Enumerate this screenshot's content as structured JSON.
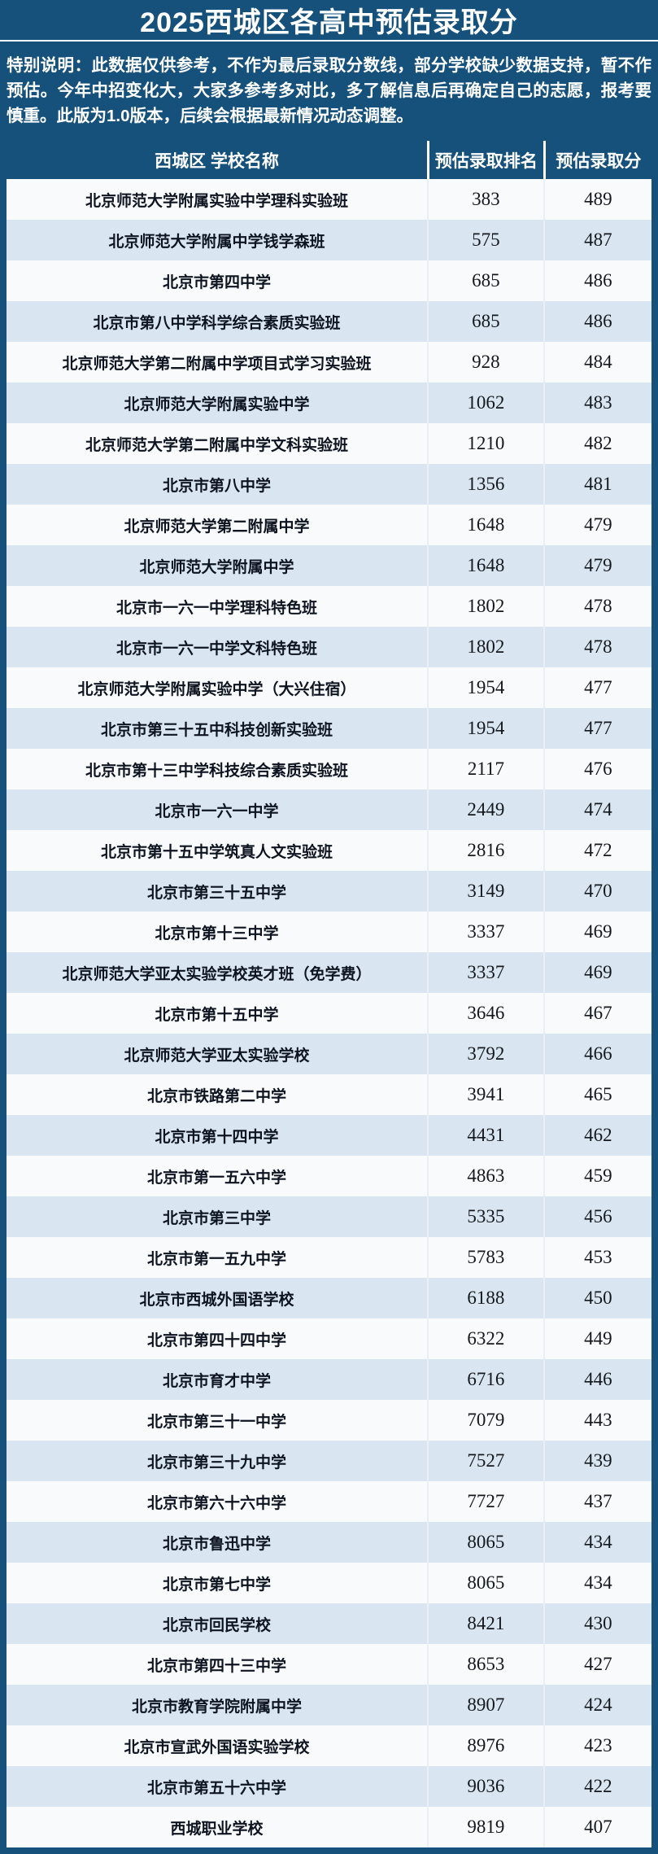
{
  "poster": {
    "title": "2025西城区各高中预估录取分",
    "notice": "特别说明：此数据仅供参考，不作为最后录取分数线，部分学校缺少数据支持，暂不作预估。今年中招变化大，大家多参考多对比，多了解信息后再确定自己的志愿，报考要慎重。此版为1.0版本，后续会根据最新情况动态调整。"
  },
  "colors": {
    "background": "#16517C",
    "header_text": "#FFFFFF",
    "row_white": "#F8FAFC",
    "row_blue": "#D9E6F1",
    "body_text": "#0D1420",
    "divider": "#FFFFFF"
  },
  "chart_data": {
    "type": "table",
    "title": "2025西城区各高中预估录取分",
    "columns": [
      "西城区 学校名称",
      "预估录取排名",
      "预估录取分"
    ],
    "rows": [
      {
        "school": "北京师范大学附属实验中学理科实验班",
        "rank": "383",
        "score": "489"
      },
      {
        "school": "北京师范大学附属中学钱学森班",
        "rank": "575",
        "score": "487"
      },
      {
        "school": "北京市第四中学",
        "rank": "685",
        "score": "486"
      },
      {
        "school": "北京市第八中学科学综合素质实验班",
        "rank": "685",
        "score": "486"
      },
      {
        "school": "北京师范大学第二附属中学项目式学习实验班",
        "rank": "928",
        "score": "484"
      },
      {
        "school": "北京师范大学附属实验中学",
        "rank": "1062",
        "score": "483"
      },
      {
        "school": "北京师范大学第二附属中学文科实验班",
        "rank": "1210",
        "score": "482"
      },
      {
        "school": "北京市第八中学",
        "rank": "1356",
        "score": "481"
      },
      {
        "school": "北京师范大学第二附属中学",
        "rank": "1648",
        "score": "479"
      },
      {
        "school": "北京师范大学附属中学",
        "rank": "1648",
        "score": "479"
      },
      {
        "school": "北京市一六一中学理科特色班",
        "rank": "1802",
        "score": "478"
      },
      {
        "school": "北京市一六一中学文科特色班",
        "rank": "1802",
        "score": "478"
      },
      {
        "school": "北京师范大学附属实验中学（大兴住宿）",
        "rank": "1954",
        "score": "477"
      },
      {
        "school": "北京市第三十五中科技创新实验班",
        "rank": "1954",
        "score": "477"
      },
      {
        "school": "北京市第十三中学科技综合素质实验班",
        "rank": "2117",
        "score": "476"
      },
      {
        "school": "北京市一六一中学",
        "rank": "2449",
        "score": "474"
      },
      {
        "school": "北京市第十五中学筑真人文实验班",
        "rank": "2816",
        "score": "472"
      },
      {
        "school": "北京市第三十五中学",
        "rank": "3149",
        "score": "470"
      },
      {
        "school": "北京市第十三中学",
        "rank": "3337",
        "score": "469"
      },
      {
        "school": "北京师范大学亚太实验学校英才班（免学费）",
        "rank": "3337",
        "score": "469"
      },
      {
        "school": "北京市第十五中学",
        "rank": "3646",
        "score": "467"
      },
      {
        "school": "北京师范大学亚太实验学校",
        "rank": "3792",
        "score": "466"
      },
      {
        "school": "北京市铁路第二中学",
        "rank": "3941",
        "score": "465"
      },
      {
        "school": "北京市第十四中学",
        "rank": "4431",
        "score": "462"
      },
      {
        "school": "北京市第一五六中学",
        "rank": "4863",
        "score": "459"
      },
      {
        "school": "北京市第三中学",
        "rank": "5335",
        "score": "456"
      },
      {
        "school": "北京市第一五九中学",
        "rank": "5783",
        "score": "453"
      },
      {
        "school": "北京市西城外国语学校",
        "rank": "6188",
        "score": "450"
      },
      {
        "school": "北京市第四十四中学",
        "rank": "6322",
        "score": "449"
      },
      {
        "school": "北京市育才中学",
        "rank": "6716",
        "score": "446"
      },
      {
        "school": "北京市第三十一中学",
        "rank": "7079",
        "score": "443"
      },
      {
        "school": "北京市第三十九中学",
        "rank": "7527",
        "score": "439"
      },
      {
        "school": "北京市第六十六中学",
        "rank": "7727",
        "score": "437"
      },
      {
        "school": "北京市鲁迅中学",
        "rank": "8065",
        "score": "434"
      },
      {
        "school": "北京市第七中学",
        "rank": "8065",
        "score": "434"
      },
      {
        "school": "北京市回民学校",
        "rank": "8421",
        "score": "430"
      },
      {
        "school": "北京市第四十三中学",
        "rank": "8653",
        "score": "427"
      },
      {
        "school": "北京市教育学院附属中学",
        "rank": "8907",
        "score": "424"
      },
      {
        "school": "北京市宣武外国语实验学校",
        "rank": "8976",
        "score": "423"
      },
      {
        "school": "北京市第五十六中学",
        "rank": "9036",
        "score": "422"
      },
      {
        "school": "西城职业学校",
        "rank": "9819",
        "score": "407"
      }
    ]
  }
}
